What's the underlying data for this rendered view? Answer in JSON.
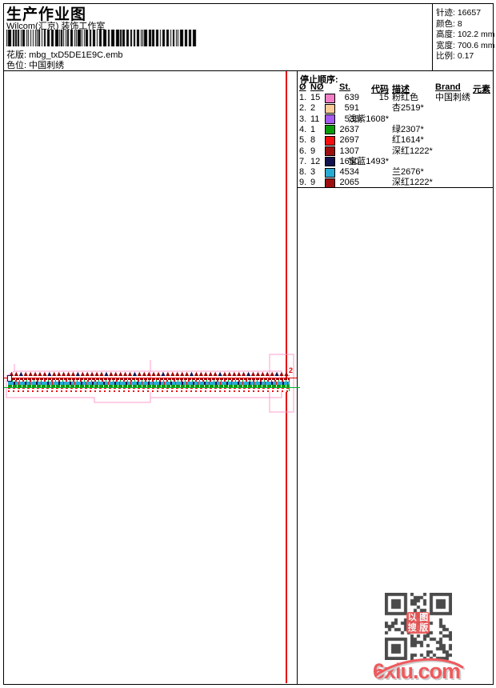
{
  "page": {
    "title": "生产作业图",
    "subtitle": "Wilcom(汇京) 装饰工作室"
  },
  "design_info": {
    "pattern_label": "花版:",
    "pattern_value": "mbg_txD5DE1E9C.emb",
    "colorway_label": "色位:",
    "colorway_value": "中国刺绣"
  },
  "stats": {
    "items": [
      {
        "label": "针迹:",
        "value": "16657"
      },
      {
        "label": "颜色:",
        "value": "8"
      },
      {
        "label": "高度:",
        "value": "102.2 mm"
      },
      {
        "label": "宽度:",
        "value": "700.6 mm"
      },
      {
        "label": "比例:",
        "value": "0.17"
      }
    ]
  },
  "stop_sequence": {
    "title": "停止顺序:",
    "columns": [
      "Ø",
      "NØ",
      "St.",
      "代码",
      "描述",
      "Brand",
      "元素"
    ],
    "rows": [
      {
        "idx": "1.",
        "needle": "15",
        "color": "#f07fc6",
        "stitches": "639",
        "code": "15",
        "desc": "粉红色",
        "brand": "中国刺绣"
      },
      {
        "idx": "2.",
        "needle": "2",
        "color": "#fbcb97",
        "stitches": "591",
        "code": "",
        "desc": "杏2519*",
        "brand": ""
      },
      {
        "idx": "3.",
        "needle": "11",
        "color": "#a55bee",
        "stitches": "535",
        "code": "浅紫1608*",
        "desc": "",
        "brand": ""
      },
      {
        "idx": "4.",
        "needle": "1",
        "color": "#0a9a0a",
        "stitches": "2637",
        "code": "",
        "desc": "绿2307*",
        "brand": ""
      },
      {
        "idx": "5.",
        "needle": "8",
        "color": "#f50f0f",
        "stitches": "2697",
        "code": "",
        "desc": "红1614*",
        "brand": ""
      },
      {
        "idx": "6.",
        "needle": "9",
        "color": "#9d0f0f",
        "stitches": "1307",
        "code": "",
        "desc": "深红1222*",
        "brand": ""
      },
      {
        "idx": "7.",
        "needle": "12",
        "color": "#12124e",
        "stitches": "1650",
        "code": "宝蓝1493*",
        "desc": "",
        "brand": ""
      },
      {
        "idx": "8.",
        "needle": "3",
        "color": "#28abd3",
        "stitches": "4534",
        "code": "",
        "desc": "兰2676*",
        "brand": ""
      },
      {
        "idx": "9.",
        "needle": "9",
        "color": "#9d0f0f",
        "stitches": "2065",
        "code": "",
        "desc": "深红1222*",
        "brand": ""
      }
    ]
  },
  "design_view": {
    "stop_marker": "2",
    "guide_red": "#e60000",
    "guide_green": "#00b22d",
    "hoop_pink": "#ff9ccc",
    "zigzag_red": "#9a0606",
    "zigzag_navy": "#13134f"
  },
  "watermark": {
    "logo_text": "6xiu.com",
    "logo_color": "#ee5a5e",
    "stamp_text": "以图搜版",
    "stamp_color": "#e85353",
    "qr_color": "#4a4a4a"
  }
}
